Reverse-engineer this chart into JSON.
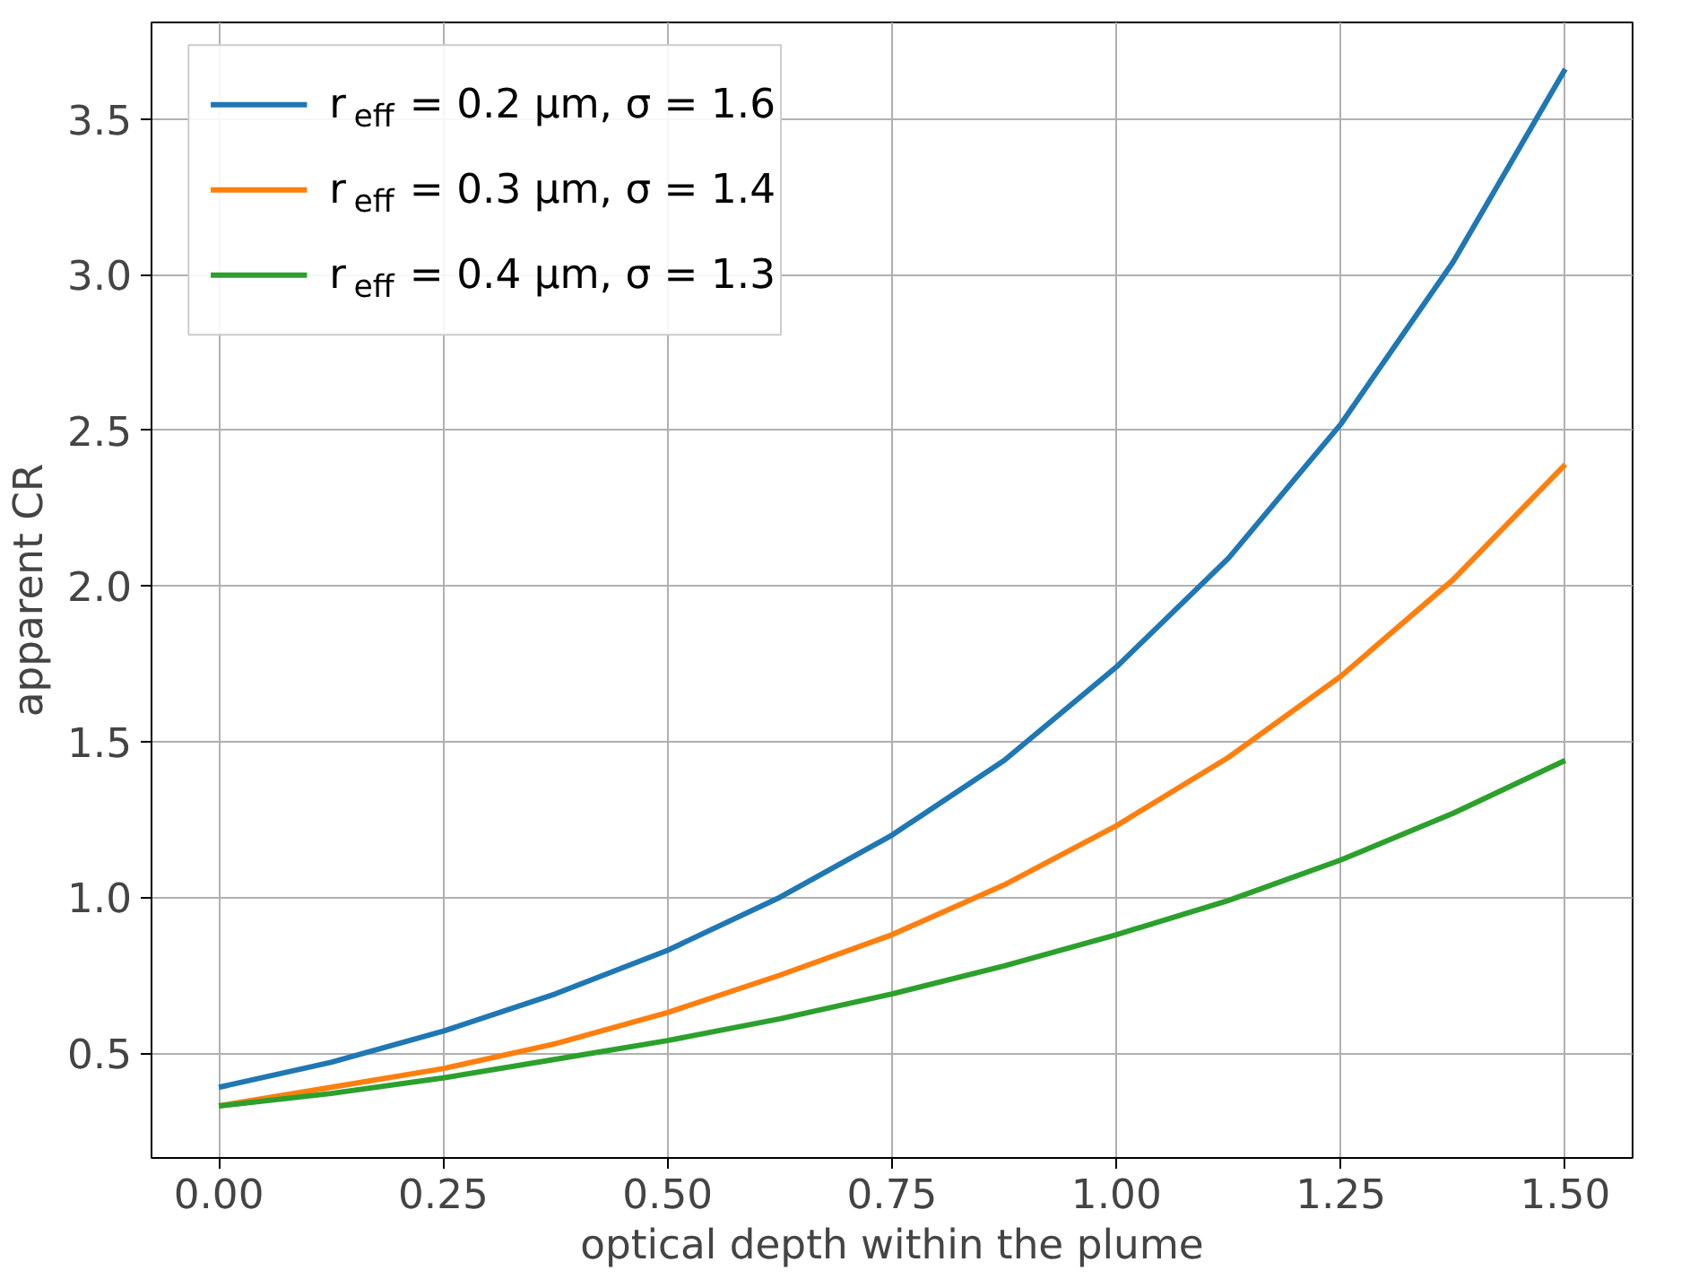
{
  "chart_data": {
    "type": "line",
    "xlabel": "optical depth within the plume",
    "ylabel": "apparent CR",
    "x": [
      0,
      0.125,
      0.25,
      0.375,
      0.5,
      0.625,
      0.75,
      0.875,
      1.0,
      1.125,
      1.25,
      1.375,
      1.5
    ],
    "series": [
      {
        "name": "r$_{eff}$ = 0.2 μm, σ = 1.6",
        "color": "#1f77b4",
        "values": [
          0.39,
          0.47,
          0.57,
          0.69,
          0.83,
          1.0,
          1.2,
          1.44,
          1.74,
          2.09,
          2.52,
          3.04,
          3.66
        ]
      },
      {
        "name": "r$_{eff}$ = 0.3 μm, σ = 1.4",
        "color": "#ff7f0e",
        "values": [
          0.33,
          0.39,
          0.45,
          0.53,
          0.63,
          0.75,
          0.88,
          1.04,
          1.23,
          1.45,
          1.71,
          2.02,
          2.39
        ]
      },
      {
        "name": "r$_{eff}$ = 0.4 μm, σ = 1.3",
        "color": "#2ca02c",
        "values": [
          0.33,
          0.37,
          0.42,
          0.48,
          0.54,
          0.61,
          0.69,
          0.78,
          0.88,
          0.99,
          1.12,
          1.27,
          1.44
        ]
      }
    ],
    "xlim": [
      -0.075,
      1.575
    ],
    "ylim": [
      0.163,
      3.81
    ],
    "xticks": [
      {
        "value": 0,
        "label": "0.00"
      },
      {
        "value": 0.25,
        "label": "0.25"
      },
      {
        "value": 0.5,
        "label": "0.50"
      },
      {
        "value": 0.75,
        "label": "0.75"
      },
      {
        "value": 1.0,
        "label": "1.00"
      },
      {
        "value": 1.25,
        "label": "1.25"
      },
      {
        "value": 1.5,
        "label": "1.50"
      }
    ],
    "yticks": [
      0.5,
      {
        "value": 1.0,
        "label": "1.0"
      },
      1.5,
      {
        "value": 2.0,
        "label": "2.0"
      },
      2.5,
      {
        "value": 3.0,
        "label": "3.0"
      },
      3.5
    ],
    "grid": true,
    "legend": "top left",
    "marker": "none",
    "line_style": "solid"
  }
}
